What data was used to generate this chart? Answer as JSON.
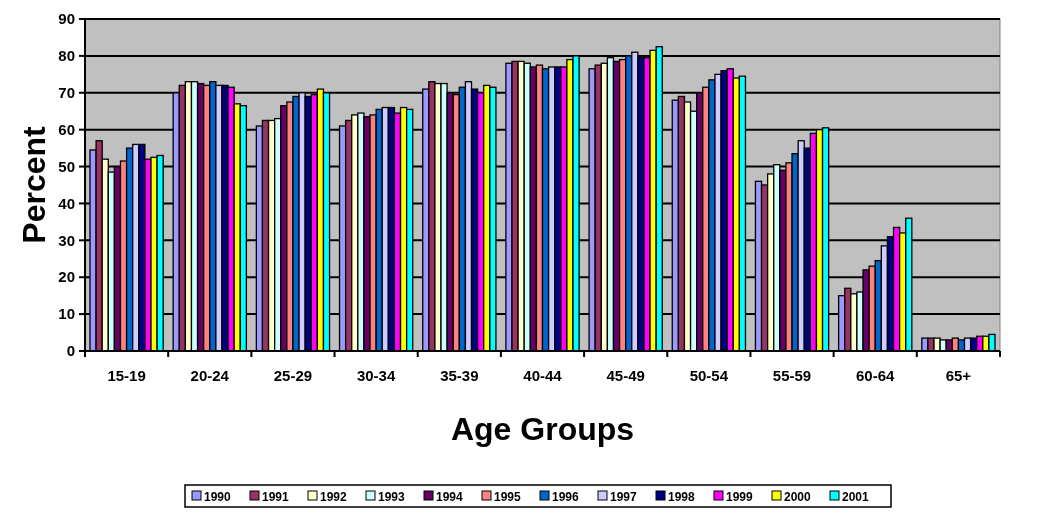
{
  "chart_data": {
    "type": "bar",
    "xlabel": "Age Groups",
    "ylabel": "Percent",
    "categories": [
      "15-19",
      "20-24",
      "25-29",
      "30-34",
      "35-39",
      "40-44",
      "45-49",
      "50-54",
      "55-59",
      "60-64",
      "65+"
    ],
    "ylim": [
      0,
      90
    ],
    "yticks": [
      0,
      10,
      20,
      30,
      40,
      50,
      60,
      70,
      80,
      90
    ],
    "grid": "y",
    "legend": "bottom",
    "series": [
      {
        "name": "1990",
        "color": "#9999ff",
        "values": [
          54.5,
          70,
          61,
          61,
          71,
          78,
          76.5,
          68,
          46,
          15,
          3.5
        ]
      },
      {
        "name": "1991",
        "color": "#993366",
        "values": [
          57,
          72,
          62.5,
          62.5,
          73,
          78.5,
          77.5,
          69,
          45,
          17,
          3.5
        ]
      },
      {
        "name": "1992",
        "color": "#ffffcc",
        "values": [
          52,
          73,
          62.5,
          64,
          72.5,
          78.5,
          78,
          67.5,
          48,
          15.5,
          3.5
        ]
      },
      {
        "name": "1993",
        "color": "#ccffff",
        "values": [
          48.5,
          73,
          63,
          64.5,
          72.5,
          78,
          79.5,
          65,
          50.5,
          16,
          3
        ]
      },
      {
        "name": "1994",
        "color": "#660066",
        "values": [
          50,
          72.5,
          66.5,
          63.5,
          70,
          77,
          78.5,
          70,
          49,
          22,
          3
        ]
      },
      {
        "name": "1995",
        "color": "#ff8080",
        "values": [
          51.5,
          72,
          67.5,
          64,
          69.5,
          77.5,
          79,
          71.5,
          51,
          23,
          3.5
        ]
      },
      {
        "name": "1996",
        "color": "#0066cc",
        "values": [
          55,
          73,
          69,
          65.5,
          71.5,
          76.5,
          80,
          73.5,
          53.5,
          24.5,
          3
        ]
      },
      {
        "name": "1997",
        "color": "#ccccff",
        "values": [
          56,
          72,
          70,
          66,
          73,
          77,
          81,
          75,
          57,
          28.5,
          3.5
        ]
      },
      {
        "name": "1998",
        "color": "#000080",
        "values": [
          56,
          72,
          69,
          66,
          71,
          77,
          79.5,
          76,
          55,
          31,
          3.5
        ]
      },
      {
        "name": "1999",
        "color": "#ff00ff",
        "values": [
          52,
          71.5,
          69.5,
          64.5,
          70,
          77,
          79.5,
          76.5,
          59,
          33.5,
          4
        ]
      },
      {
        "name": "2000",
        "color": "#ffff00",
        "values": [
          52.5,
          67,
          71,
          66,
          72,
          79,
          81.5,
          74,
          60,
          32,
          4
        ]
      },
      {
        "name": "2001",
        "color": "#00ffff",
        "values": [
          53,
          66.5,
          70,
          65.5,
          71.5,
          80,
          82.5,
          74.5,
          60.5,
          36,
          4.5
        ]
      }
    ]
  }
}
